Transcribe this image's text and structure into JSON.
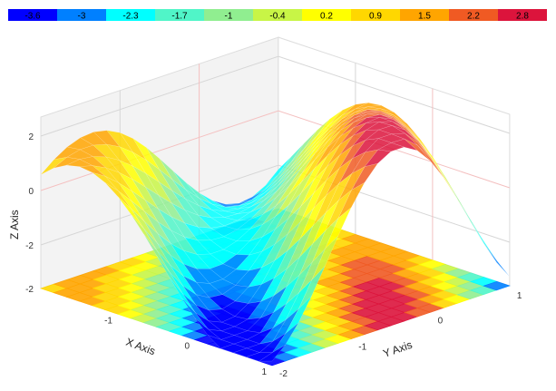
{
  "chart_data": {
    "type": "surface",
    "title": "",
    "xlabel": "X Axis",
    "ylabel": "Y Axis",
    "zlabel": "Z Axis",
    "xlim": [
      -2,
      1
    ],
    "ylim": [
      -2,
      1
    ],
    "zlim": [
      -3.6,
      2.8
    ],
    "x_ticks": [
      "-2",
      "-1",
      "0",
      "1"
    ],
    "y_ticks": [
      "-2",
      "-1",
      "0",
      "1"
    ],
    "z_ticks": [
      "-2",
      "0",
      "2"
    ],
    "floor_projection": true,
    "grid": true,
    "legend_placement": "top",
    "legend": {
      "labels": [
        "-3.6",
        "-3",
        "-2.3",
        "-1.7",
        "-1",
        "-0.4",
        "0.2",
        "0.9",
        "1.5",
        "2.2",
        "2.8"
      ],
      "colors": [
        "#0000ff",
        "#0080ff",
        "#00ffff",
        "#50f5c8",
        "#90ee90",
        "#c8f546",
        "#ffff00",
        "#ffd700",
        "#ffa500",
        "#f05a23",
        "#dc143c"
      ]
    }
  }
}
